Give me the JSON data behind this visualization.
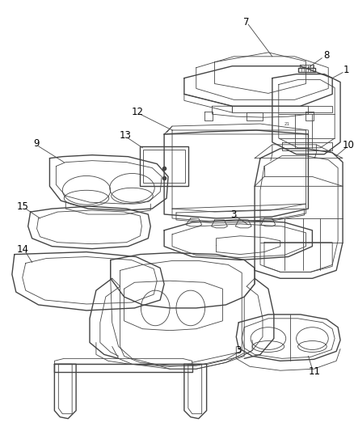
{
  "background_color": "#ffffff",
  "line_color": "#444444",
  "label_color": "#000000",
  "fig_width": 4.38,
  "fig_height": 5.33,
  "dpi": 100
}
